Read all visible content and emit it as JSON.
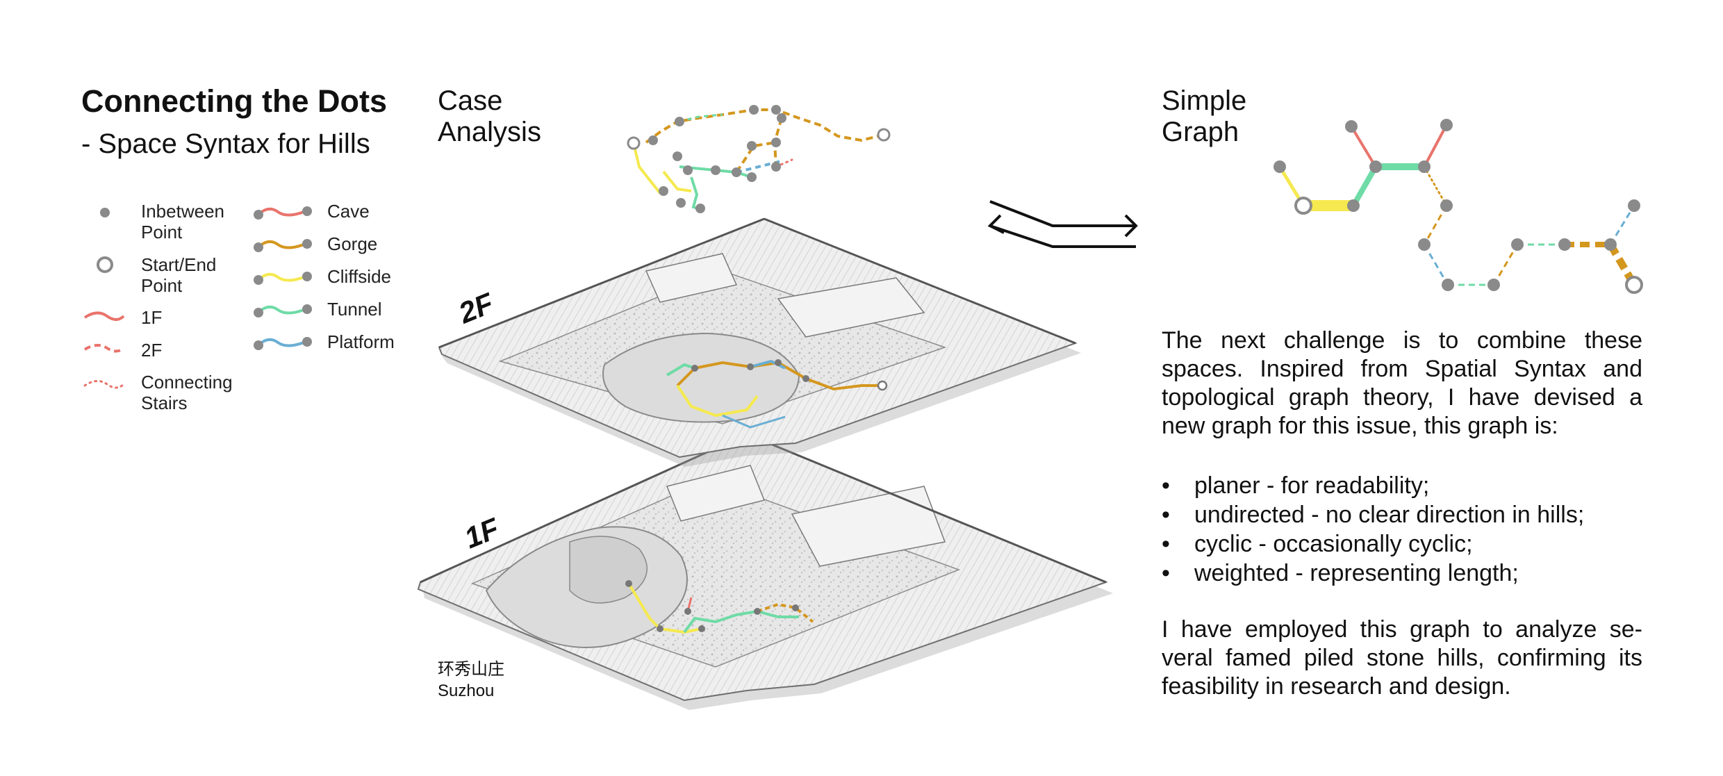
{
  "title": "Connecting the Dots",
  "subtitle": "- Space Syntax for Hills",
  "legend": {
    "left": [
      {
        "icon": "inbetween-point-icon",
        "label_lines": [
          "Inbetween",
          "Point"
        ]
      },
      {
        "icon": "start-end-point-icon",
        "label_lines": [
          "Start/End",
          "Point"
        ]
      },
      {
        "icon": "1f-line-icon",
        "label_lines": [
          "1F"
        ]
      },
      {
        "icon": "2f-line-icon",
        "label_lines": [
          "2F"
        ]
      },
      {
        "icon": "connecting-stairs-icon",
        "label_lines": [
          "Connecting",
          "Stairs"
        ]
      }
    ],
    "right": [
      {
        "icon": "cave-icon",
        "label": "Cave",
        "color": "#e9736b"
      },
      {
        "icon": "gorge-icon",
        "label": "Gorge",
        "color": "#d4971e"
      },
      {
        "icon": "cliffside-icon",
        "label": "Cliffside",
        "color": "#f5e94f"
      },
      {
        "icon": "tunnel-icon",
        "label": "Tunnel",
        "color": "#6fdba6"
      },
      {
        "icon": "platform-icon",
        "label": "Platform",
        "color": "#6aaed4"
      }
    ]
  },
  "case_analysis": {
    "heading_lines": [
      "Case",
      "Analysis"
    ],
    "floor_labels": [
      "2F",
      "1F"
    ],
    "caption_lines": [
      "环秀山庄",
      "Suzhou"
    ]
  },
  "simple_graph": {
    "heading_lines": [
      "Simple",
      "Graph"
    ]
  },
  "description": {
    "intro": "The next challenge is to combine these spaces. Inspired from Spatial Syntax and topological graph theory, I have devised a new graph for this issue, this graph is:",
    "bullets": [
      "planer - for readability;",
      "undirected - no clear direction in hills;",
      "cyclic - occasionally cyclic;",
      "weighted - representing length;"
    ],
    "closing": "I have employed this graph to analyze se-veral famed piled stone hills, confirming its feasibility in research and design."
  },
  "colors": {
    "node": "#8a8a8a",
    "cave": "#e9736b",
    "gorge": "#d4971e",
    "cliffside": "#f5e94f",
    "tunnel": "#6fdba6",
    "platform": "#6aaed4"
  }
}
